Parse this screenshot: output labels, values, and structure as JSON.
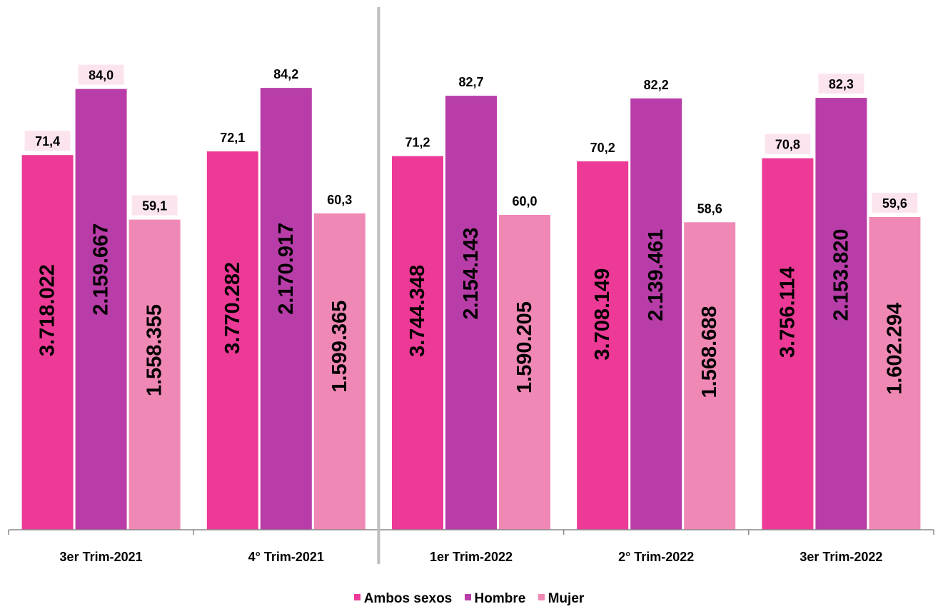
{
  "chart_data": {
    "type": "bar",
    "categories": [
      "3er Trim-2021",
      "4° Trim-2021",
      "1er Trim-2022",
      "2° Trim-2022",
      "3er Trim-2022"
    ],
    "series": [
      {
        "name": "Ambos sexos",
        "color": "#EC3A96",
        "rates": [
          71.4,
          72.1,
          71.2,
          70.2,
          70.8
        ],
        "rate_labels": [
          "71,4",
          "72,1",
          "71,2",
          "70,2",
          "70,8"
        ],
        "counts": [
          3718022,
          3770282,
          3744348,
          3708149,
          3756114
        ],
        "count_labels": [
          "3.718.022",
          "3.770.282",
          "3.744.348",
          "3.708.149",
          "3.756.114"
        ],
        "label_highlight": [
          true,
          false,
          false,
          false,
          true
        ]
      },
      {
        "name": "Hombre",
        "color": "#B83DA8",
        "rates": [
          84.0,
          84.2,
          82.7,
          82.2,
          82.3
        ],
        "rate_labels": [
          "84,0",
          "84,2",
          "82,7",
          "82,2",
          "82,3"
        ],
        "counts": [
          2159667,
          2170917,
          2154143,
          2139461,
          2153820
        ],
        "count_labels": [
          "2.159.667",
          "2.170.917",
          "2.154.143",
          "2.139.461",
          "2.153.820"
        ],
        "label_highlight": [
          true,
          false,
          false,
          false,
          true
        ]
      },
      {
        "name": "Mujer",
        "color": "#F088B5",
        "rates": [
          59.1,
          60.3,
          60.0,
          58.6,
          59.6
        ],
        "rate_labels": [
          "59,1",
          "60,3",
          "60,0",
          "58,6",
          "59,6"
        ],
        "counts": [
          1558355,
          1599365,
          1590205,
          1568688,
          1602294
        ],
        "count_labels": [
          "1.558.355",
          "1.599.365",
          "1.590.205",
          "1.568.688",
          "1.602.294"
        ],
        "label_highlight": [
          true,
          false,
          false,
          false,
          true
        ]
      }
    ],
    "ylim": [
      0,
      100
    ],
    "grid": false,
    "legend_position": "bottom",
    "separator_after_category": 1,
    "label_highlight_color": "#FCE4EF"
  }
}
